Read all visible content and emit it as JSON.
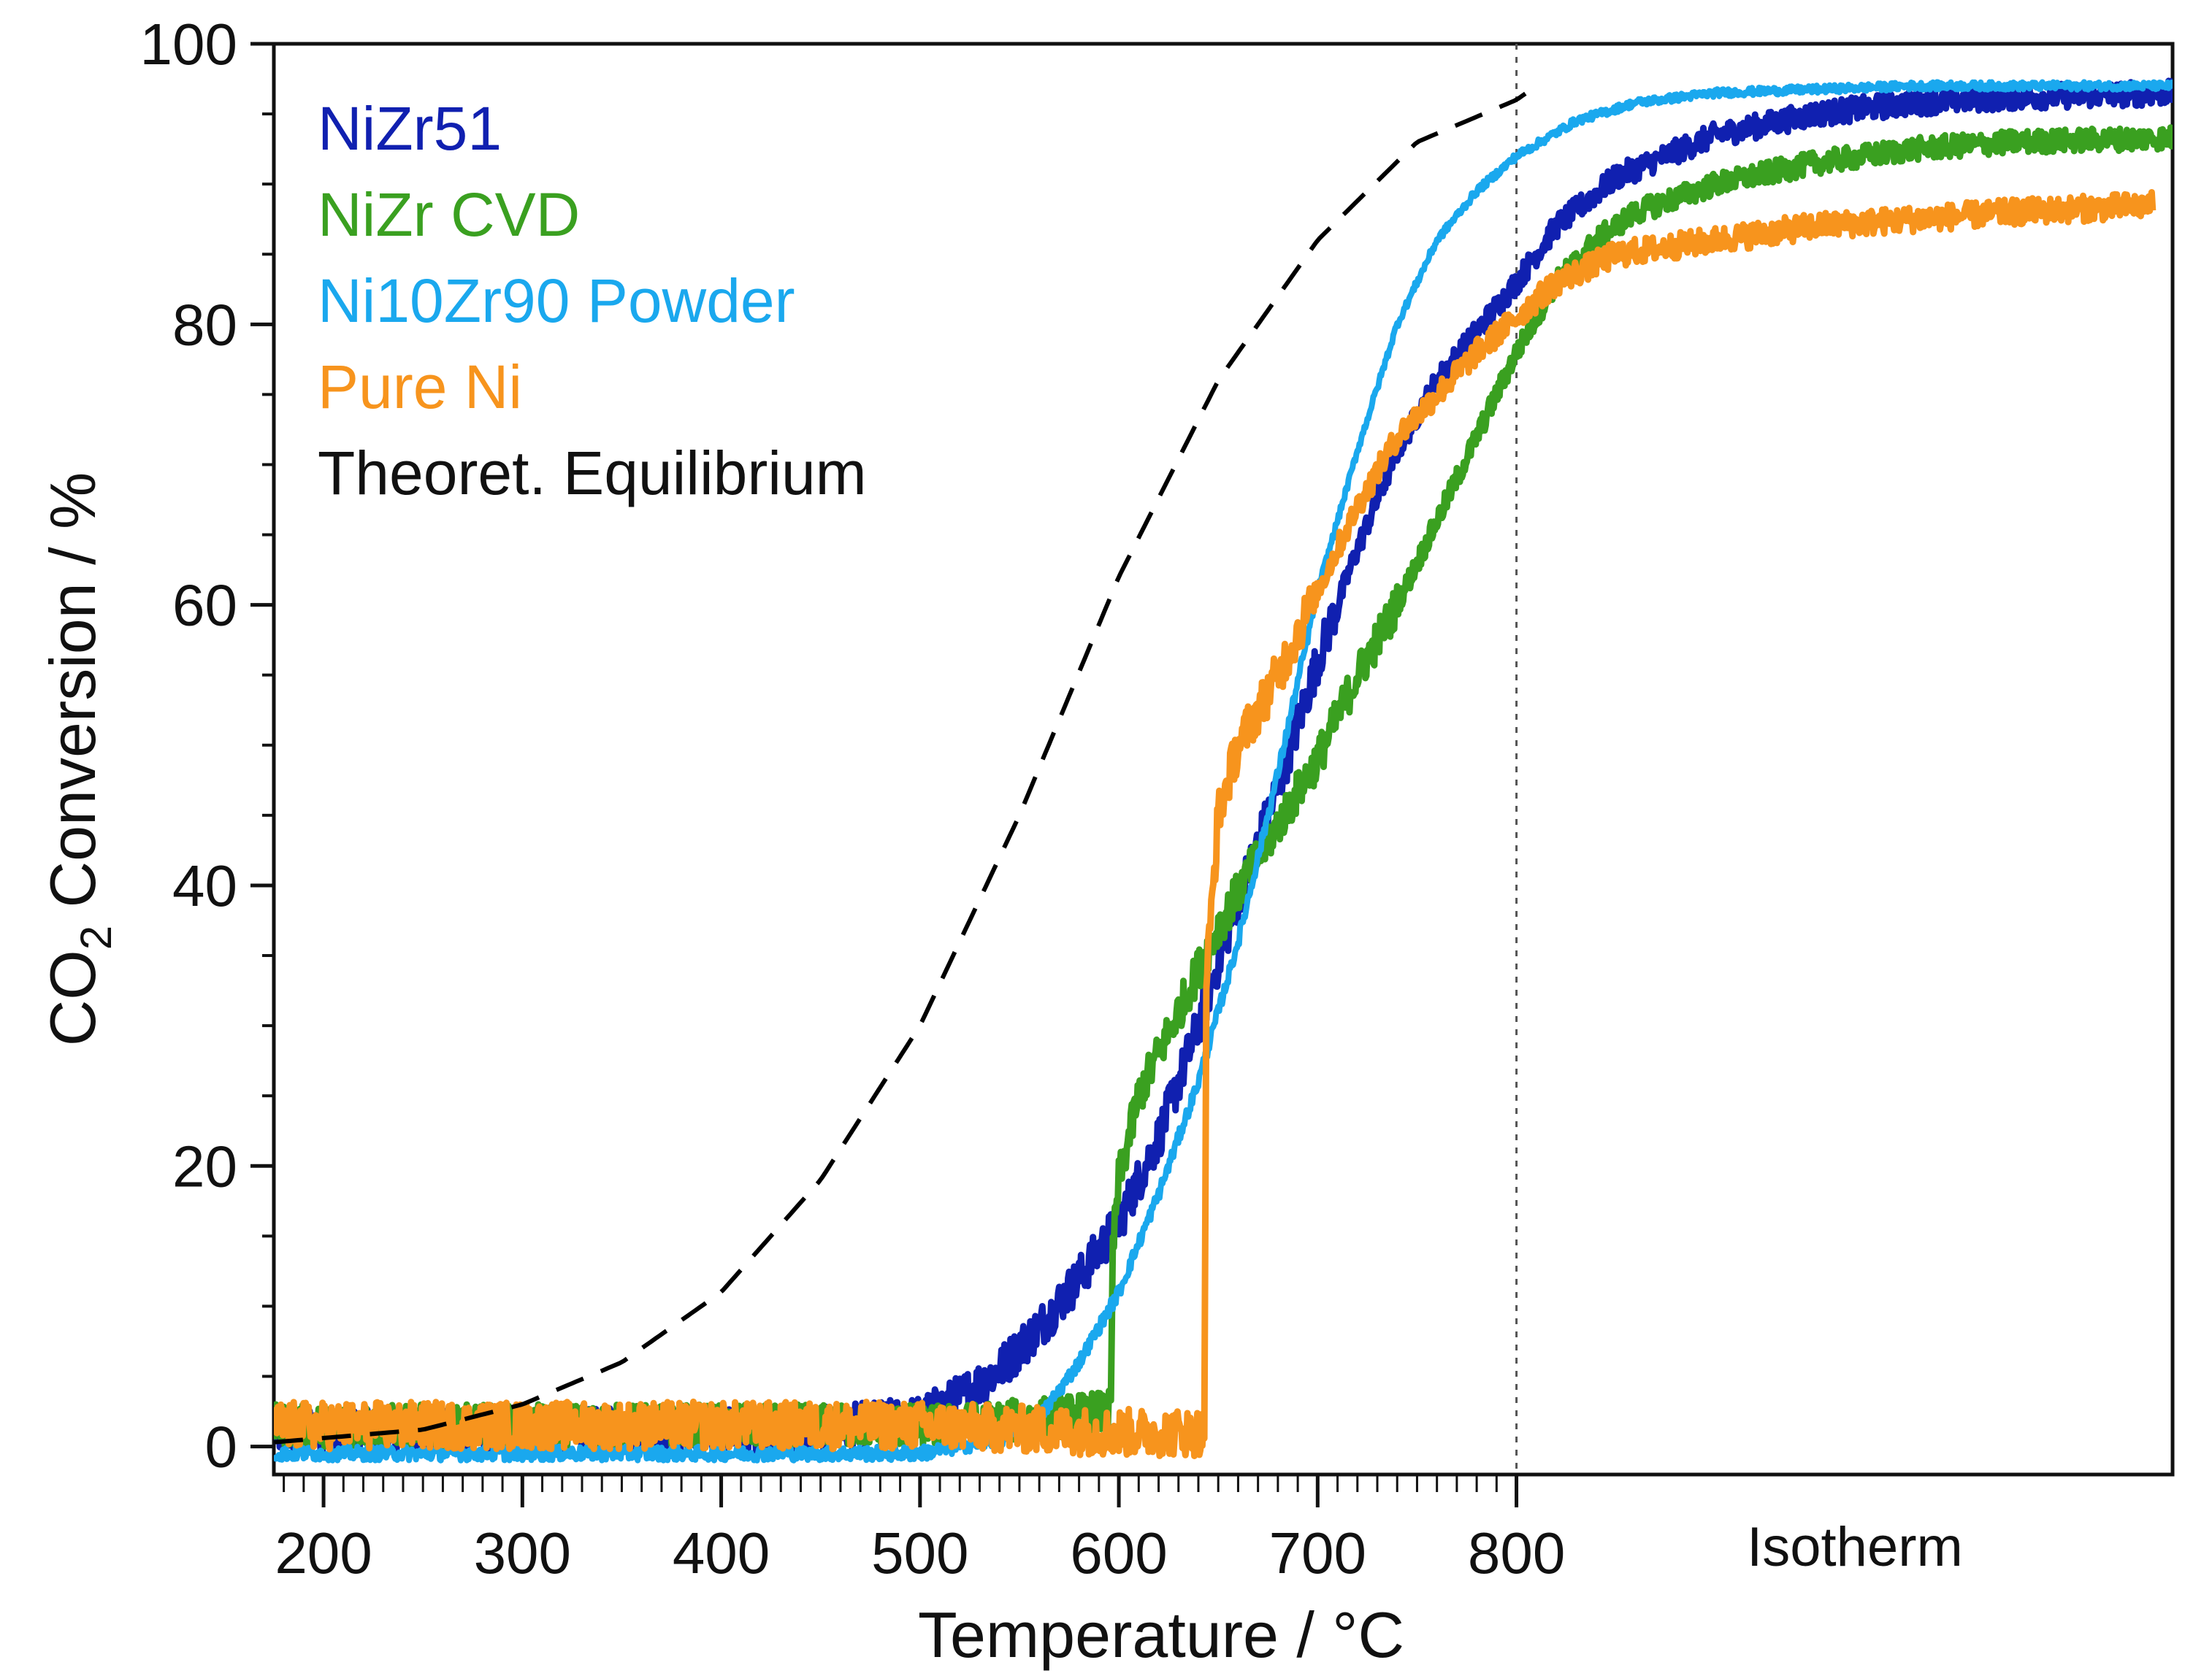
{
  "chart_data": {
    "type": "line",
    "xlabel": "Temperature / °C",
    "ylabel_parts": {
      "pre": "CO",
      "sub": "2",
      "post": " Conversion / %"
    },
    "xlim": [
      175,
      1130
    ],
    "ylim": [
      -2,
      100
    ],
    "x_ticks": [
      200,
      300,
      400,
      500,
      600,
      700,
      800
    ],
    "y_ticks": [
      0,
      20,
      40,
      60,
      80,
      100
    ],
    "isotherm_marker_x": 800,
    "isotherm_label": "Isotherm",
    "legend_position": "top-left",
    "series": [
      {
        "name": "NiZr51",
        "color": "#1020b0",
        "style": "solid",
        "noise": 1.6,
        "points": [
          [
            175,
            1
          ],
          [
            450,
            1.2
          ],
          [
            500,
            2
          ],
          [
            520,
            3.5
          ],
          [
            540,
            5.5
          ],
          [
            560,
            8.5
          ],
          [
            580,
            12
          ],
          [
            600,
            16
          ],
          [
            620,
            22
          ],
          [
            640,
            30
          ],
          [
            660,
            39
          ],
          [
            680,
            47
          ],
          [
            700,
            56
          ],
          [
            720,
            64
          ],
          [
            740,
            71
          ],
          [
            760,
            76
          ],
          [
            780,
            79.5
          ],
          [
            800,
            83
          ],
          [
            820,
            87
          ],
          [
            850,
            90.5
          ],
          [
            900,
            93.5
          ],
          [
            950,
            95
          ],
          [
            1000,
            95.8
          ],
          [
            1050,
            96.2
          ],
          [
            1130,
            96.5
          ]
        ]
      },
      {
        "name": "NiZr CVD",
        "color": "#3aa020",
        "style": "solid",
        "noise": 1.5,
        "stepAt": 597,
        "points": [
          [
            175,
            1.5
          ],
          [
            520,
            1.5
          ],
          [
            560,
            2
          ],
          [
            596,
            2.5
          ],
          [
            597,
            14
          ],
          [
            600,
            19
          ],
          [
            610,
            25
          ],
          [
            630,
            31
          ],
          [
            650,
            37
          ],
          [
            670,
            42
          ],
          [
            700,
            49
          ],
          [
            720,
            55
          ],
          [
            740,
            60
          ],
          [
            760,
            66
          ],
          [
            780,
            72
          ],
          [
            800,
            78
          ],
          [
            820,
            83
          ],
          [
            840,
            86
          ],
          [
            860,
            88
          ],
          [
            900,
            90
          ],
          [
            950,
            91.5
          ],
          [
            1000,
            92.5
          ],
          [
            1050,
            93
          ],
          [
            1130,
            93.3
          ]
        ]
      },
      {
        "name": "Ni10Zr90 Powder",
        "color": "#1aa8ee",
        "style": "solid",
        "noise": 0.5,
        "points": [
          [
            175,
            -0.5
          ],
          [
            500,
            -0.5
          ],
          [
            540,
            0.5
          ],
          [
            560,
            2
          ],
          [
            580,
            6
          ],
          [
            600,
            11
          ],
          [
            620,
            18
          ],
          [
            640,
            26
          ],
          [
            660,
            36
          ],
          [
            680,
            48
          ],
          [
            700,
            61
          ],
          [
            720,
            71
          ],
          [
            740,
            80
          ],
          [
            760,
            86
          ],
          [
            780,
            89.5
          ],
          [
            800,
            92
          ],
          [
            830,
            94.5
          ],
          [
            860,
            95.8
          ],
          [
            900,
            96.5
          ],
          [
            1000,
            97
          ],
          [
            1130,
            97
          ]
        ]
      },
      {
        "name": "Pure Ni",
        "color": "#f7941d",
        "style": "solid",
        "noise": 1.7,
        "stepAt": 644,
        "points": [
          [
            175,
            1.5
          ],
          [
            500,
            1.5
          ],
          [
            600,
            1
          ],
          [
            643,
            1
          ],
          [
            644,
            33
          ],
          [
            650,
            45
          ],
          [
            660,
            50
          ],
          [
            680,
            55
          ],
          [
            700,
            61
          ],
          [
            720,
            67
          ],
          [
            740,
            72
          ],
          [
            760,
            75
          ],
          [
            780,
            78
          ],
          [
            800,
            80.5
          ],
          [
            820,
            83
          ],
          [
            850,
            85
          ],
          [
            900,
            86
          ],
          [
            950,
            87
          ],
          [
            1000,
            87.5
          ],
          [
            1050,
            88
          ],
          [
            1120,
            88.5
          ]
        ]
      },
      {
        "name": "Theoret. Equilibrium",
        "color": "#000000",
        "style": "dashed",
        "noise": 0,
        "points": [
          [
            175,
            0.3
          ],
          [
            250,
            1.2
          ],
          [
            300,
            3
          ],
          [
            350,
            6
          ],
          [
            400,
            11
          ],
          [
            450,
            19
          ],
          [
            500,
            30
          ],
          [
            550,
            45
          ],
          [
            600,
            62
          ],
          [
            650,
            76
          ],
          [
            700,
            86
          ],
          [
            750,
            93
          ],
          [
            800,
            96
          ],
          [
            810,
            97
          ]
        ]
      }
    ]
  }
}
